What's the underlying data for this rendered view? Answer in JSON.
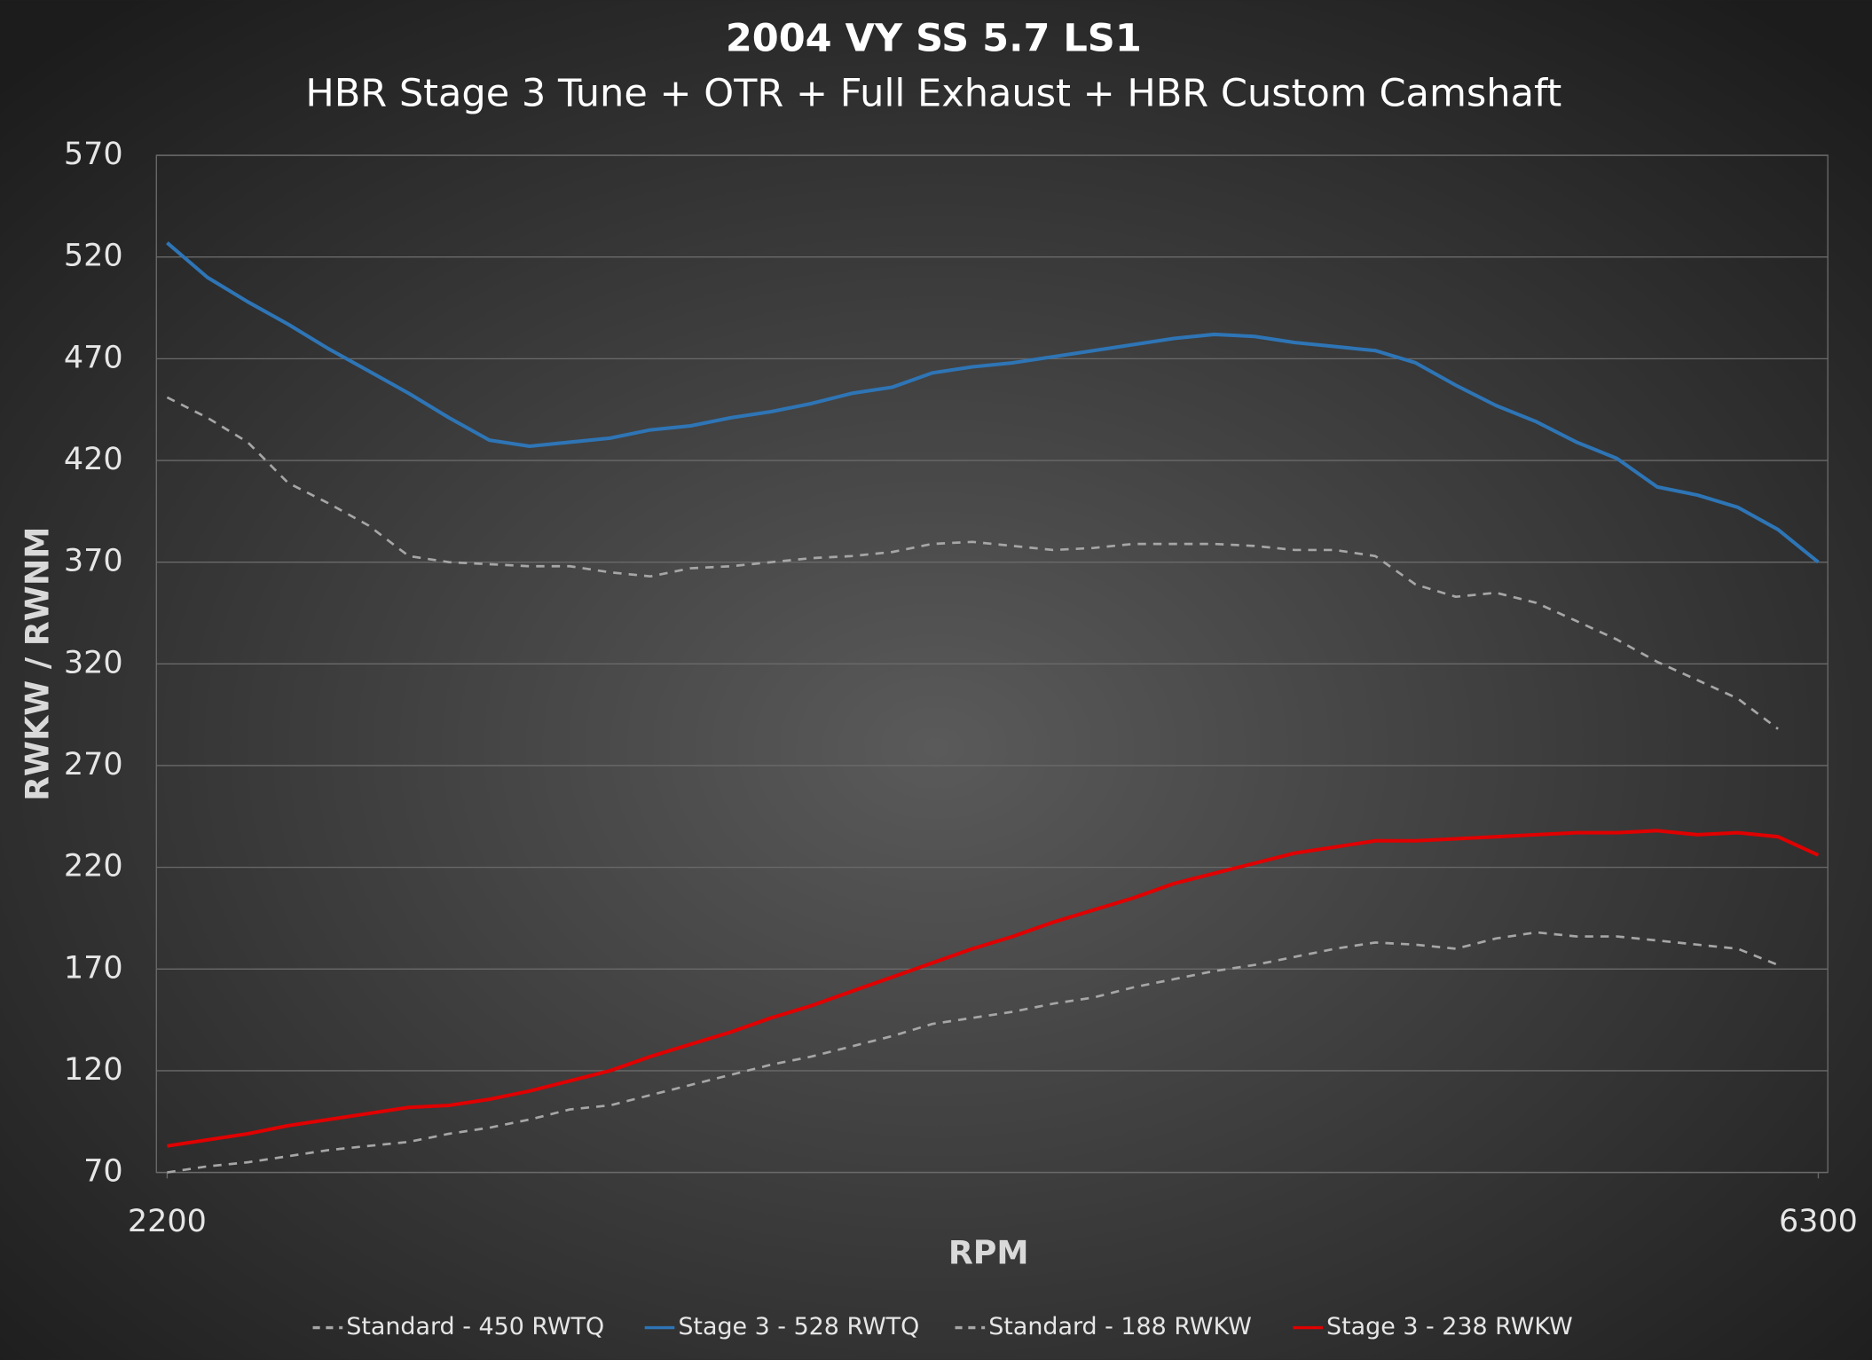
{
  "chart_data": {
    "type": "line",
    "title": "2004 VY SS 5.7 LS1",
    "subtitle": "HBR Stage 3 Tune + OTR + Full Exhaust + HBR Custom Camshaft",
    "x_label": "RPM",
    "y_label": "RWKW / RWNM",
    "x": [
      2200,
      2300,
      2400,
      2500,
      2600,
      2700,
      2800,
      2900,
      3000,
      3100,
      3200,
      3300,
      3400,
      3500,
      3600,
      3700,
      3800,
      3900,
      4000,
      4100,
      4200,
      4300,
      4400,
      4500,
      4600,
      4700,
      4800,
      4900,
      5000,
      5100,
      5200,
      5300,
      5400,
      5500,
      5600,
      5700,
      5800,
      5900,
      6000,
      6100,
      6200,
      6300
    ],
    "xlim": [
      2200,
      6300
    ],
    "xticks": [
      2200,
      6300
    ],
    "ylim": [
      70,
      570
    ],
    "yticks": [
      70,
      120,
      170,
      220,
      270,
      320,
      370,
      420,
      470,
      520,
      570
    ],
    "grid": true,
    "legend": "bottom",
    "series": [
      {
        "name": "Standard - 450 RWTQ",
        "color": "#a6a6a6",
        "style": "dashed",
        "values": [
          451,
          441,
          429,
          409,
          399,
          388,
          373,
          370,
          369,
          368,
          368,
          365,
          363,
          367,
          368,
          370,
          372,
          373,
          375,
          379,
          380,
          378,
          376,
          377,
          379,
          379,
          379,
          378,
          376,
          376,
          373,
          359,
          353,
          355,
          350,
          341,
          332,
          321,
          312,
          303,
          288,
          null
        ]
      },
      {
        "name": "Stage 3 - 528 RWTQ",
        "color": "#2e75b6",
        "style": "solid",
        "values": [
          527,
          510,
          498,
          487,
          475,
          464,
          453,
          441,
          430,
          427,
          429,
          431,
          435,
          437,
          441,
          444,
          448,
          453,
          456,
          463,
          466,
          468,
          471,
          474,
          477,
          480,
          482,
          481,
          478,
          476,
          474,
          468,
          457,
          447,
          439,
          429,
          421,
          407,
          403,
          397,
          386,
          370
        ]
      },
      {
        "name": "Standard - 188 RWKW",
        "color": "#a6a6a6",
        "style": "dashed",
        "values": [
          70,
          73,
          75,
          78,
          81,
          83,
          85,
          89,
          92,
          96,
          101,
          103,
          108,
          113,
          118,
          123,
          127,
          132,
          137,
          143,
          146,
          149,
          153,
          156,
          161,
          165,
          169,
          172,
          176,
          180,
          183,
          182,
          180,
          185,
          188,
          186,
          186,
          184,
          182,
          180,
          172,
          null
        ]
      },
      {
        "name": "Stage 3 - 238 RWKW",
        "color": "#e00000",
        "style": "solid",
        "values": [
          83,
          86,
          89,
          93,
          96,
          99,
          102,
          103,
          106,
          110,
          115,
          120,
          127,
          133,
          139,
          146,
          152,
          159,
          166,
          173,
          180,
          186,
          193,
          199,
          205,
          212,
          217,
          222,
          227,
          230,
          233,
          233,
          234,
          235,
          236,
          237,
          237,
          238,
          236,
          237,
          235,
          226
        ]
      }
    ]
  }
}
